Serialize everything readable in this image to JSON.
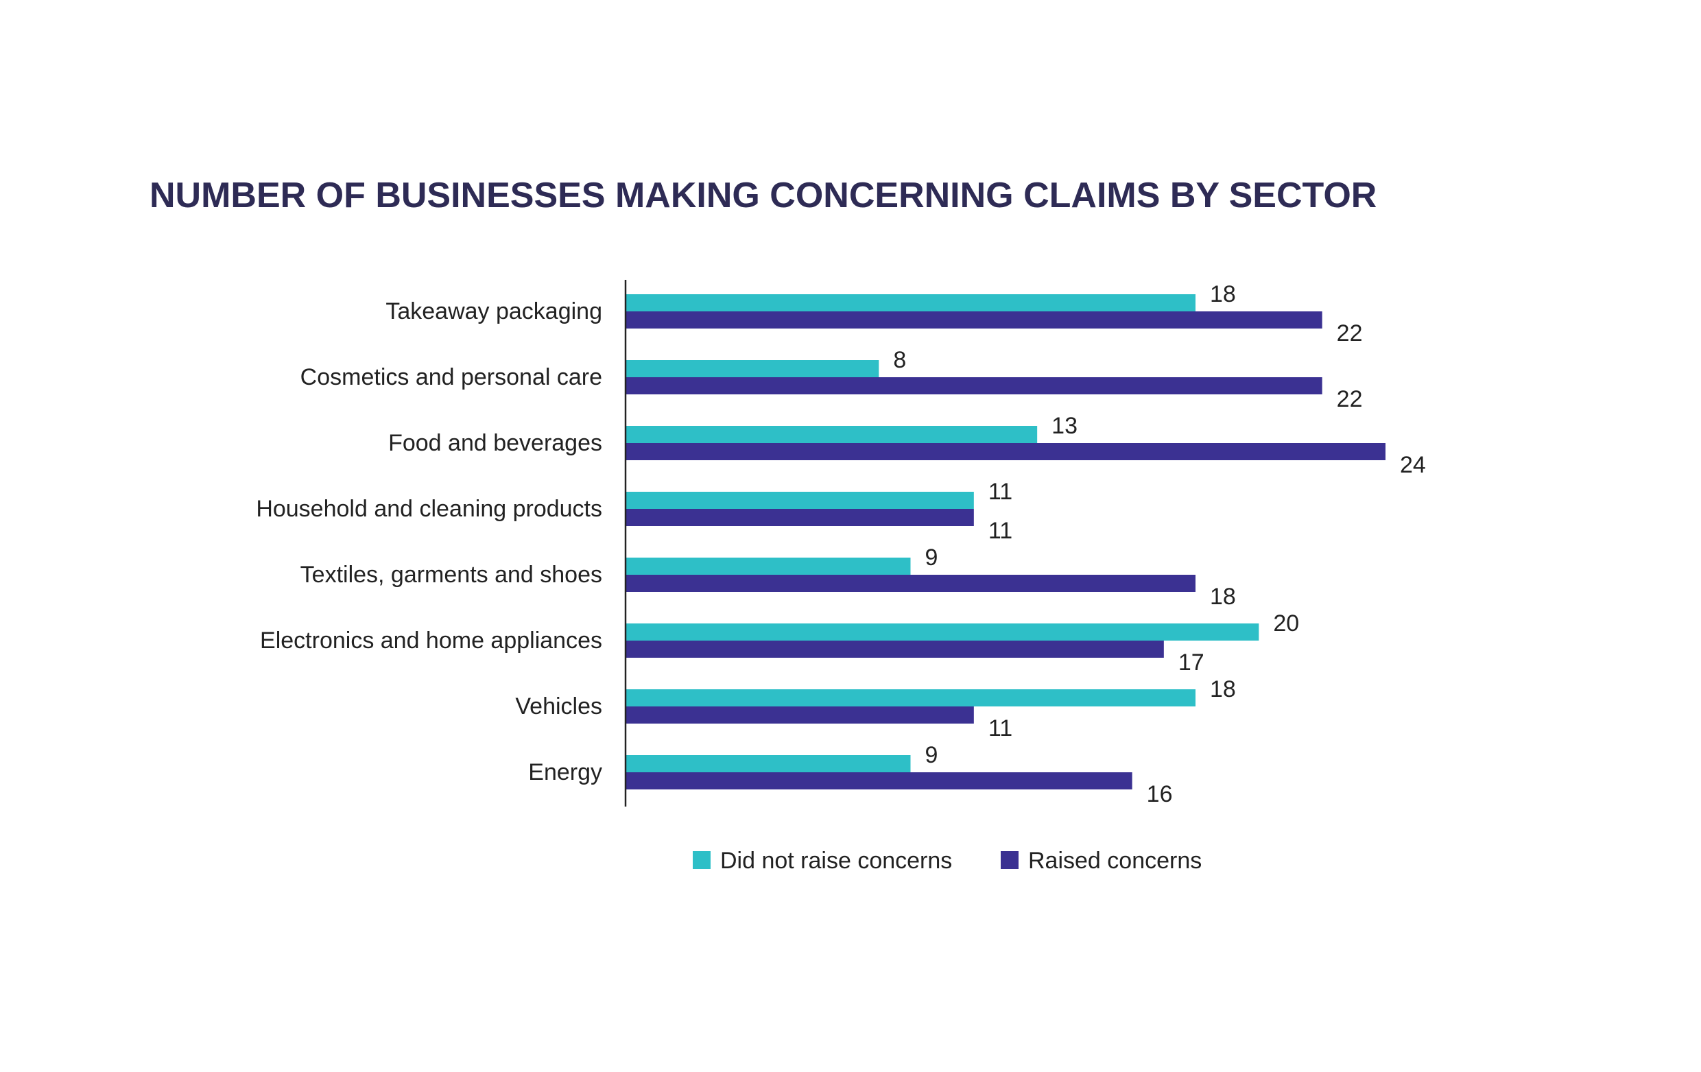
{
  "chart_data": {
    "type": "bar",
    "orientation": "horizontal",
    "title": "NUMBER OF BUSINESSES MAKING CONCERNING CLAIMS BY SECTOR",
    "categories": [
      "Takeaway packaging",
      "Cosmetics and personal care",
      "Food and beverages",
      "Household and cleaning products",
      "Textiles, garments and shoes",
      "Electronics and home appliances",
      "Vehicles",
      "Energy"
    ],
    "series": [
      {
        "name": "Did not raise concerns",
        "color": "#2ebfc7",
        "values": [
          18,
          8,
          13,
          11,
          9,
          20,
          18,
          9
        ]
      },
      {
        "name": "Raised concerns",
        "color": "#3b3192",
        "values": [
          22,
          22,
          24,
          11,
          18,
          17,
          11,
          16
        ]
      }
    ],
    "xlim": [
      0,
      24
    ],
    "grid": false,
    "legend": "bottom"
  }
}
